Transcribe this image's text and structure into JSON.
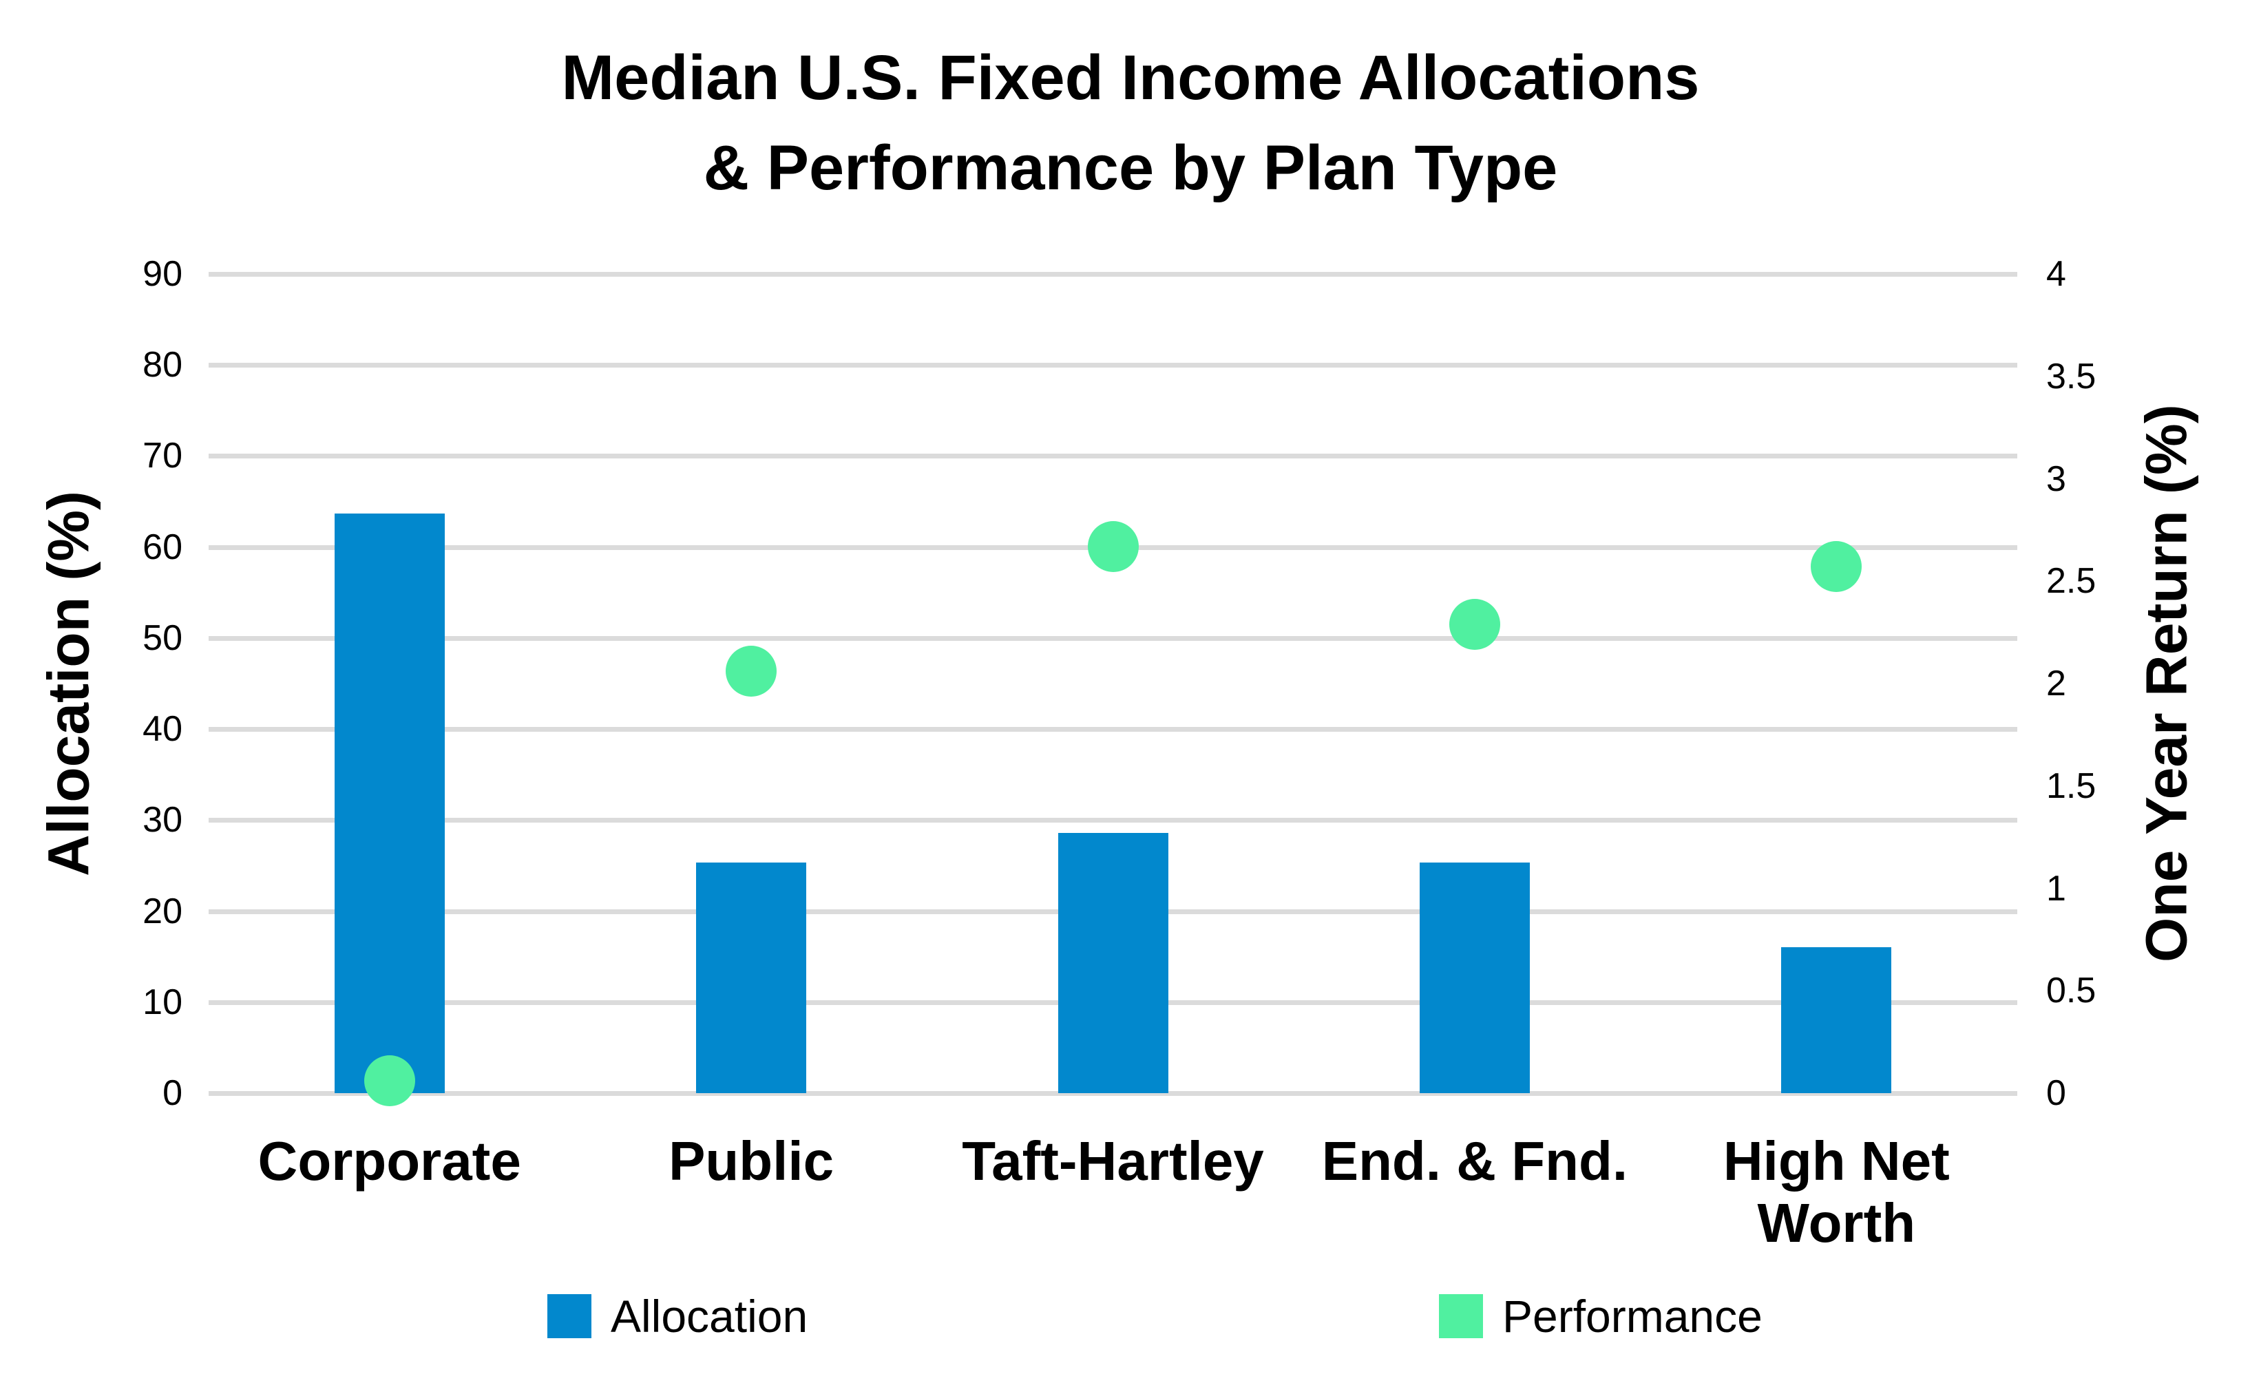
{
  "title": {
    "line1": "Median U.S. Fixed Income Allocations",
    "line2": "& Performance by Plan Type"
  },
  "left_axis": {
    "title": "Allocation (%)",
    "min": 0,
    "max": 90,
    "ticks": [
      90,
      80,
      70,
      60,
      50,
      40,
      30,
      20,
      10,
      0
    ]
  },
  "right_axis": {
    "title": "One Year Return (%)",
    "min": 0,
    "max": 4,
    "ticks": [
      4,
      3.5,
      3,
      2.5,
      2,
      1.5,
      1,
      0.5,
      0
    ]
  },
  "legend": {
    "items": [
      {
        "label": "Allocation",
        "color": "#0288CD"
      },
      {
        "label": "Performance",
        "color": "#50F0A0"
      }
    ]
  },
  "colors": {
    "bar": "#0288CD",
    "dot": "#50F0A0",
    "gridline": "#DBDBDB",
    "text": "#000000",
    "background": "#FFFFFF"
  },
  "chart_data": {
    "type": "bar",
    "subtype": "combo column + scatter, dual y-axis",
    "title": "Median U.S. Fixed Income Allocations & Performance by Plan Type",
    "categories": [
      "Corporate",
      "Public",
      "Taft-Hartley",
      "End. & Fnd.",
      "High Net Worth"
    ],
    "x_display_labels": [
      "Corporate",
      "Public",
      "Taft-Hartley",
      "End. & Fnd.",
      "High Net\nWorth"
    ],
    "series": [
      {
        "name": "Allocation",
        "type": "bar",
        "y_axis": "left",
        "values": [
          63.7,
          25.3,
          28.6,
          25.3,
          16
        ]
      },
      {
        "name": "Performance",
        "type": "scatter",
        "y_axis": "right",
        "values": [
          0.06,
          2.06,
          2.67,
          2.29,
          2.57
        ]
      }
    ],
    "left_ylim": [
      0,
      90
    ],
    "right_ylim": [
      0,
      4
    ],
    "grid": "horizontal gridlines only",
    "legend_position": "bottom"
  }
}
